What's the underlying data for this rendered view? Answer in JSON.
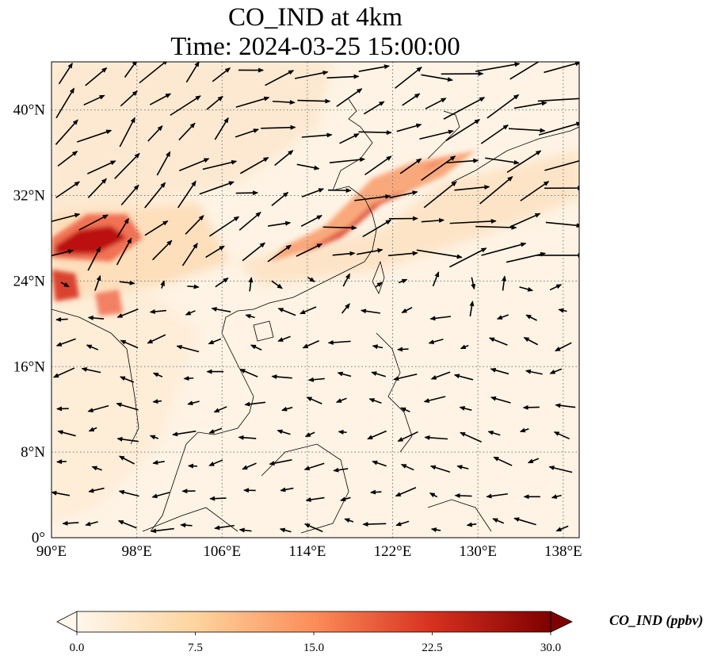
{
  "title": {
    "line1": "CO_IND at 4km",
    "line2": "Time: 2024-03-25 15:00:00"
  },
  "map": {
    "projection": "PlateCarree",
    "lon_range": [
      90,
      139.5
    ],
    "lat_range": [
      0,
      44.5
    ],
    "gridlines": "dotted grey",
    "lon_ticks": [
      {
        "value": 90,
        "label": "90°E"
      },
      {
        "value": 98,
        "label": "98°E"
      },
      {
        "value": 106,
        "label": "106°E"
      },
      {
        "value": 114,
        "label": "114°E"
      },
      {
        "value": 122,
        "label": "122°E"
      },
      {
        "value": 130,
        "label": "130°E"
      },
      {
        "value": 138,
        "label": "138°E"
      }
    ],
    "lat_ticks": [
      {
        "value": 0,
        "label": "0°"
      },
      {
        "value": 8,
        "label": "8°N"
      },
      {
        "value": 16,
        "label": "16°N"
      },
      {
        "value": 24,
        "label": "24°N"
      },
      {
        "value": 32,
        "label": "32°N"
      },
      {
        "value": 40,
        "label": "40°N"
      }
    ],
    "field": "CO_IND",
    "wind_vectors": "black quiver arrows, westerlies north of ~22°N, easterlies south"
  },
  "colorbar": {
    "label": "CO_IND (ppbv)",
    "colormap": "OrRd",
    "colors": [
      "#fff7ec",
      "#fdd49e",
      "#fc8d59",
      "#d7301f",
      "#7f0000"
    ],
    "range": [
      0,
      30
    ],
    "extend": "both",
    "ticks": [
      {
        "value": 0,
        "label": "0.0"
      },
      {
        "value": 7.5,
        "label": "7.5"
      },
      {
        "value": 15,
        "label": "15.0"
      },
      {
        "value": 22.5,
        "label": "22.5"
      },
      {
        "value": 30,
        "label": "30.0"
      }
    ]
  }
}
